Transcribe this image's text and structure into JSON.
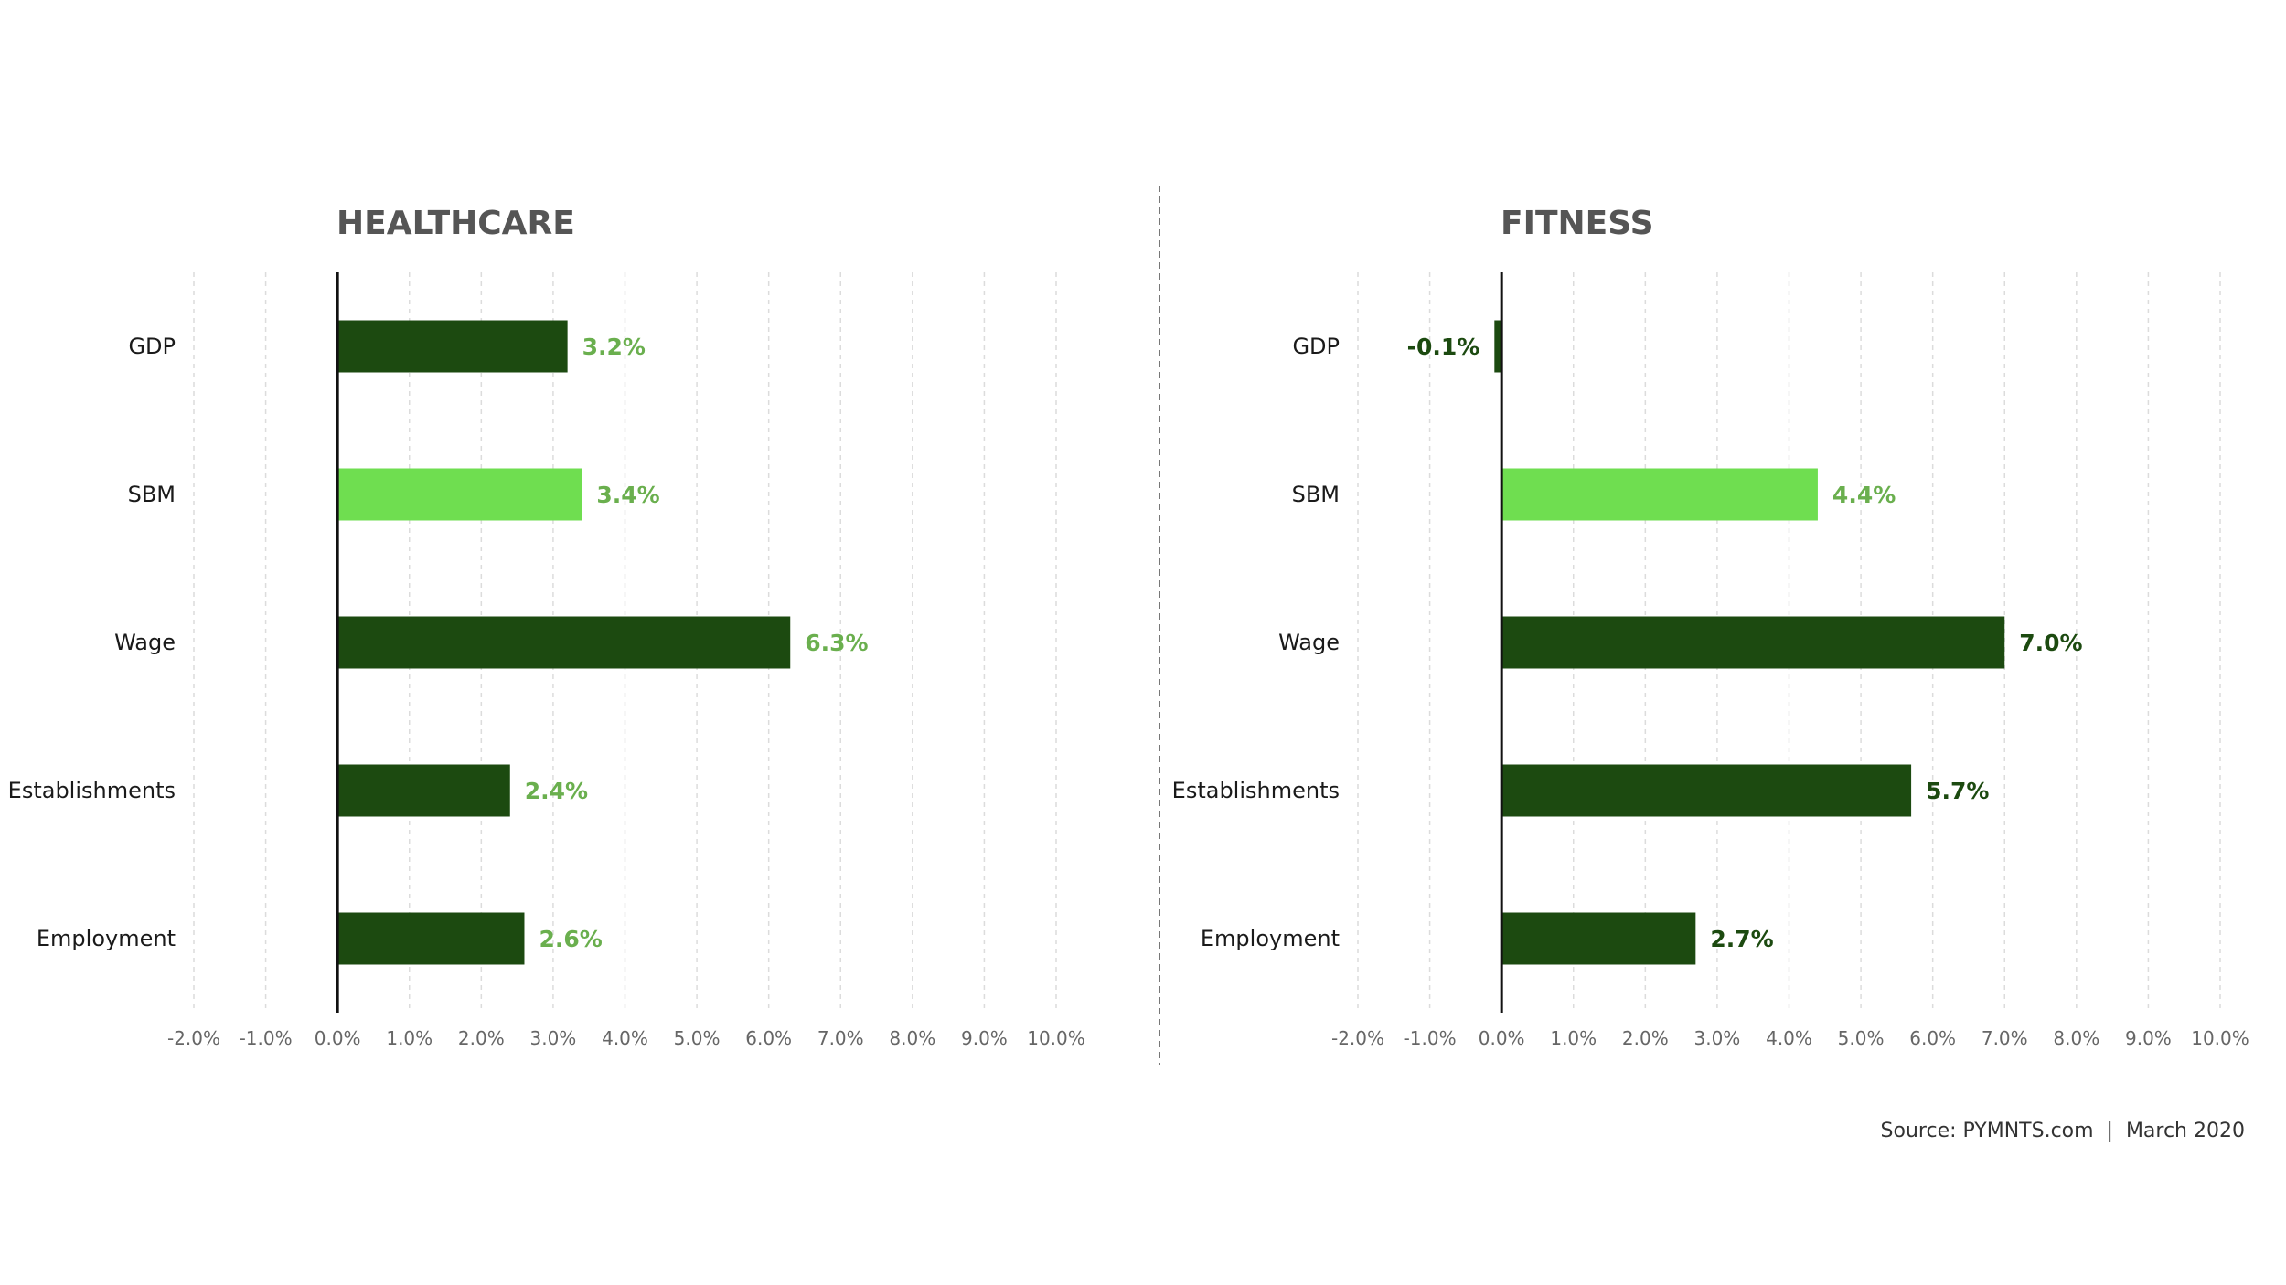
{
  "chart_data": [
    {
      "type": "bar",
      "orientation": "horizontal",
      "title": "HEALTHCARE",
      "categories": [
        "GDP",
        "SBM",
        "Wage",
        "Establishments",
        "Employment"
      ],
      "values": [
        3.2,
        3.4,
        6.3,
        2.4,
        2.6
      ],
      "value_labels": [
        "3.2%",
        "3.4%",
        "6.3%",
        "2.4%",
        "2.6%"
      ],
      "highlight_category": "SBM",
      "xlim": [
        -2.0,
        10.0
      ],
      "xticks": [
        -2.0,
        -1.0,
        0.0,
        1.0,
        2.0,
        3.0,
        4.0,
        5.0,
        6.0,
        7.0,
        8.0,
        9.0,
        10.0
      ],
      "xtick_labels": [
        "-2.0%",
        "-1.0%",
        "0.0%",
        "1.0%",
        "2.0%",
        "3.0%",
        "4.0%",
        "5.0%",
        "6.0%",
        "7.0%",
        "8.0%",
        "9.0%",
        "10.0%"
      ],
      "grid": true,
      "bar_color": "#1c4a10",
      "highlight_color": "#6fde50",
      "value_label_color": "#6aaf4e"
    },
    {
      "type": "bar",
      "orientation": "horizontal",
      "title": "FITNESS",
      "categories": [
        "GDP",
        "SBM",
        "Wage",
        "Establishments",
        "Employment"
      ],
      "values": [
        -0.1,
        4.4,
        7.0,
        5.7,
        2.7
      ],
      "value_labels": [
        "-0.1%",
        "4.4%",
        "7.0%",
        "5.7%",
        "2.7%"
      ],
      "highlight_category": "SBM",
      "xlim": [
        -2.0,
        10.0
      ],
      "xticks": [
        -2.0,
        -1.0,
        0.0,
        1.0,
        2.0,
        3.0,
        4.0,
        5.0,
        6.0,
        7.0,
        8.0,
        9.0,
        10.0
      ],
      "xtick_labels": [
        "-2.0%",
        "-1.0%",
        "0.0%",
        "1.0%",
        "2.0%",
        "3.0%",
        "4.0%",
        "5.0%",
        "6.0%",
        "7.0%",
        "8.0%",
        "9.0%",
        "10.0%"
      ],
      "grid": true,
      "bar_color": "#1c4a10",
      "highlight_color": "#6fde50",
      "value_label_color": "#1c4a10",
      "highlight_label_color": "#6aaf4e"
    }
  ],
  "source": "Source: PYMNTS.com  |  March 2020"
}
